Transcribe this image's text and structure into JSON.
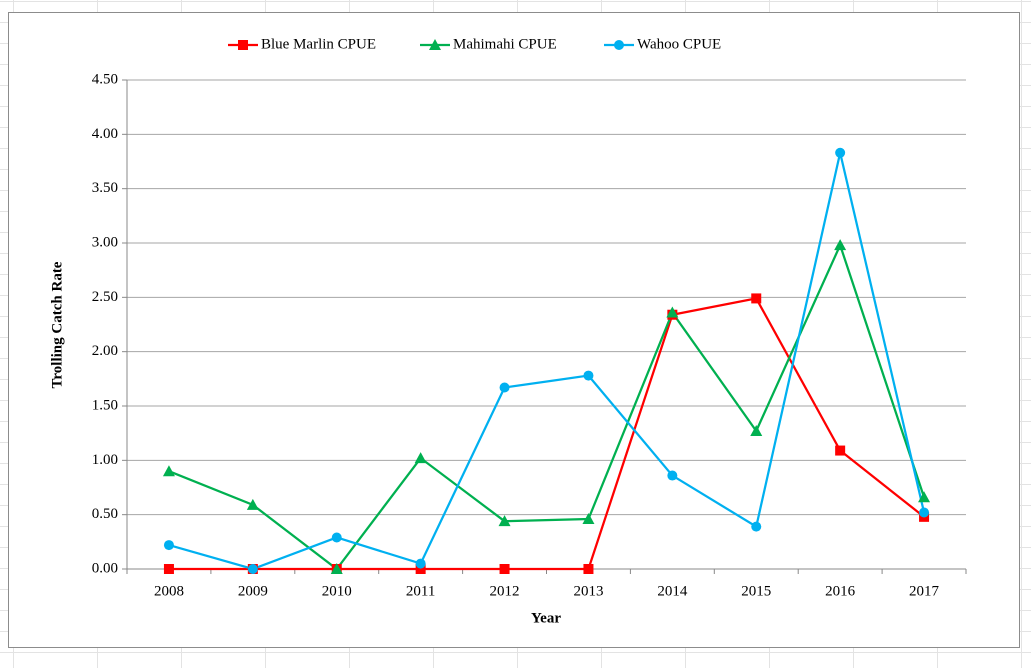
{
  "chart_data": {
    "type": "line",
    "x_label": "Year",
    "y_label": "Trolling Catch Rate",
    "categories": [
      "2008",
      "2009",
      "2010",
      "2011",
      "2012",
      "2013",
      "2014",
      "2015",
      "2016",
      "2017"
    ],
    "series": [
      {
        "name": "Blue Marlin CPUE",
        "color": "#ff0000",
        "marker": "square",
        "values": [
          0,
          0,
          0,
          0,
          0,
          0,
          2.34,
          2.49,
          1.09,
          0.48
        ]
      },
      {
        "name": "Mahimahi CPUE",
        "color": "#00b050",
        "marker": "triangle",
        "values": [
          0.9,
          0.59,
          0,
          1.02,
          0.44,
          0.46,
          2.36,
          1.27,
          2.98,
          0.66
        ]
      },
      {
        "name": "Wahoo CPUE",
        "color": "#00b0f0",
        "marker": "circle",
        "values": [
          0.22,
          0,
          0.29,
          0.05,
          1.67,
          1.78,
          0.86,
          0.39,
          3.83,
          0.52
        ]
      }
    ],
    "ylim": [
      0,
      4.5
    ],
    "yticks": [
      {
        "value": 0,
        "label": "0.00"
      },
      {
        "value": 0.5,
        "label": "0.50"
      },
      {
        "value": 1,
        "label": "1.00"
      },
      {
        "value": 1.5,
        "label": "1.50"
      },
      {
        "value": 2,
        "label": "2.00"
      },
      {
        "value": 2.5,
        "label": "2.50"
      },
      {
        "value": 3,
        "label": "3.00"
      },
      {
        "value": 3.5,
        "label": "3.50"
      },
      {
        "value": 4,
        "label": "4.00"
      },
      {
        "value": 4.5,
        "label": "4.50"
      }
    ],
    "grid": true,
    "legend": "top"
  }
}
